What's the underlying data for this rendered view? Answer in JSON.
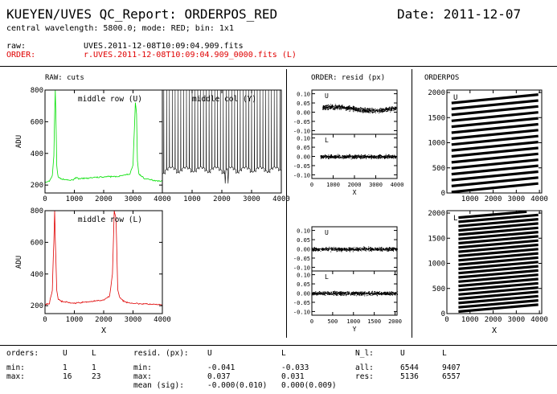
{
  "header": {
    "title": "KUEYEN/UVES QC_Report: ORDERPOS_RED",
    "date": "Date: 2011-12-07",
    "subtitle": "central wavelength: 5800.0; mode: RED; bin: 1x1",
    "raw_label": "raw:",
    "raw_file": "UVES.2011-12-08T10:09:04.909.fits",
    "order_label": "ORDER:",
    "order_file": "r.UVES.2011-12-08T10:09:04.909_0000.fits (L)"
  },
  "sections": {
    "raw_title": "RAW: cuts",
    "order_title": "ORDER: resid (px)",
    "orderpos_title": "ORDERPOS"
  },
  "stats": {
    "orders_label": "orders:",
    "col_u": "U",
    "col_l": "L",
    "min_label": "min:",
    "max_label": "max:",
    "orders_min_u": "1",
    "orders_min_l": "1",
    "orders_max_u": "16",
    "orders_max_l": "23",
    "resid_label": "resid. (px):",
    "resid_min_label": "min:",
    "resid_max_label": "max:",
    "resid_mean_label": "mean (sig):",
    "resid_min_u": "-0.041",
    "resid_min_l": "-0.033",
    "resid_max_u": "0.037",
    "resid_max_l": "0.031",
    "resid_mean_u": "-0.000(0.010)",
    "resid_mean_l": "0.000(0.009)",
    "nl_label": "N_l:",
    "all_label": "all:",
    "res_label": "res:",
    "nl_all_u": "6544",
    "nl_all_l": "9407",
    "nl_res_u": "5136",
    "nl_res_l": "6557"
  },
  "colors": {
    "upper_cut": "#00e000",
    "lower_cut": "#e00000",
    "ink": "#000000"
  },
  "chart_data": [
    {
      "id": "raw_u",
      "type": "line",
      "annotation": "middle row (U)",
      "xlabel": "",
      "ylabel": "ADU",
      "xlim": [
        0,
        4000
      ],
      "ylim": [
        150,
        800
      ],
      "xticks": [
        0,
        1000,
        2000,
        3000,
        4000
      ],
      "yticks": [
        200,
        400,
        600,
        800
      ],
      "color": "#00e000",
      "x": [
        0,
        150,
        250,
        300,
        330,
        350,
        370,
        400,
        450,
        600,
        900,
        1100,
        1150,
        1500,
        2000,
        2500,
        2900,
        3000,
        3080,
        3120,
        3150,
        3200,
        3400,
        3700,
        4000
      ],
      "y": [
        215,
        225,
        260,
        380,
        650,
        800,
        650,
        320,
        250,
        235,
        230,
        250,
        238,
        245,
        252,
        255,
        270,
        330,
        720,
        650,
        350,
        270,
        240,
        230,
        225
      ]
    },
    {
      "id": "raw_col_y",
      "type": "line",
      "annotation": "middle col (Y)",
      "xlim": [
        0,
        4000
      ],
      "ylim": [
        150,
        800
      ],
      "xticks": [
        1000,
        2000,
        3000,
        4000
      ],
      "color": "#000000",
      "peaks": 42,
      "baseline": [
        270,
        310
      ],
      "peak_top": 800,
      "dip": {
        "x": 2100,
        "y": 210
      }
    },
    {
      "id": "raw_l",
      "type": "line",
      "annotation": "middle row (L)",
      "xlabel": "X",
      "ylabel": "ADU",
      "xlim": [
        0,
        4000
      ],
      "ylim": [
        150,
        800
      ],
      "xticks": [
        0,
        1000,
        2000,
        3000,
        4000
      ],
      "yticks": [
        200,
        400,
        600,
        800
      ],
      "color": "#e00000",
      "x": [
        0,
        150,
        250,
        300,
        330,
        350,
        400,
        450,
        600,
        1000,
        1500,
        2000,
        2200,
        2300,
        2360,
        2420,
        2480,
        2550,
        2700,
        3000,
        3500,
        4000
      ],
      "y": [
        205,
        215,
        300,
        600,
        800,
        620,
        300,
        240,
        225,
        215,
        225,
        235,
        260,
        400,
        800,
        750,
        300,
        250,
        225,
        215,
        210,
        205
      ]
    },
    {
      "id": "resid_x_u",
      "type": "scatter",
      "annotation": "U",
      "xlim": [
        0,
        4000
      ],
      "ylim": [
        -0.12,
        0.12
      ],
      "yticks": [
        -0.1,
        -0.05,
        0.0,
        0.05,
        0.1
      ],
      "x_range": [
        500,
        3950
      ],
      "y_center": 0.02,
      "y_spread": 0.025
    },
    {
      "id": "resid_x_l",
      "type": "scatter",
      "annotation": "L",
      "xlabel": "X",
      "xlim": [
        0,
        4000
      ],
      "ylim": [
        -0.12,
        0.12
      ],
      "xticks": [
        0,
        1000,
        2000,
        3000,
        4000
      ],
      "yticks": [
        -0.1,
        -0.05,
        0.0,
        0.05,
        0.1
      ],
      "x_range": [
        400,
        3950
      ],
      "y_center": 0.0,
      "y_spread": 0.02
    },
    {
      "id": "resid_y_u",
      "type": "scatter",
      "annotation": "U",
      "xlim": [
        0,
        2048
      ],
      "ylim": [
        -0.12,
        0.12
      ],
      "yticks": [
        -0.1,
        -0.05,
        0.0,
        0.05,
        0.1
      ],
      "x_range": [
        0,
        2048
      ],
      "y_center": 0.0,
      "y_spread": 0.02
    },
    {
      "id": "resid_y_l",
      "type": "scatter",
      "annotation": "L",
      "xlabel": "Y",
      "xlim": [
        0,
        2048
      ],
      "ylim": [
        -0.12,
        0.12
      ],
      "xticks": [
        0,
        500,
        1000,
        1500,
        2000
      ],
      "yticks": [
        -0.1,
        -0.05,
        0.0,
        0.05,
        0.1
      ],
      "x_range": [
        0,
        2048
      ],
      "y_center": 0.0,
      "y_spread": 0.02
    },
    {
      "id": "orderpos_u",
      "type": "line",
      "annotation": "U",
      "xlim": [
        0,
        4100
      ],
      "ylim": [
        0,
        2048
      ],
      "yticks": [
        0,
        500,
        1000,
        1500,
        2000
      ],
      "xticks": [
        1000,
        2000,
        3000,
        4000
      ],
      "orders": 16,
      "x_range": [
        200,
        3950
      ],
      "y_first": 20,
      "y_step": 118,
      "slope": 0.045
    },
    {
      "id": "orderpos_l",
      "type": "line",
      "annotation": "L",
      "xlabel": "X",
      "xlim": [
        0,
        4100
      ],
      "ylim": [
        0,
        2048
      ],
      "yticks": [
        0,
        500,
        1000,
        1500,
        2000
      ],
      "xticks": [
        0,
        1000,
        2000,
        3000,
        4000
      ],
      "orders": 23,
      "x_range": [
        500,
        3950
      ],
      "y_first": 40,
      "y_step": 85,
      "slope": 0.04
    }
  ]
}
